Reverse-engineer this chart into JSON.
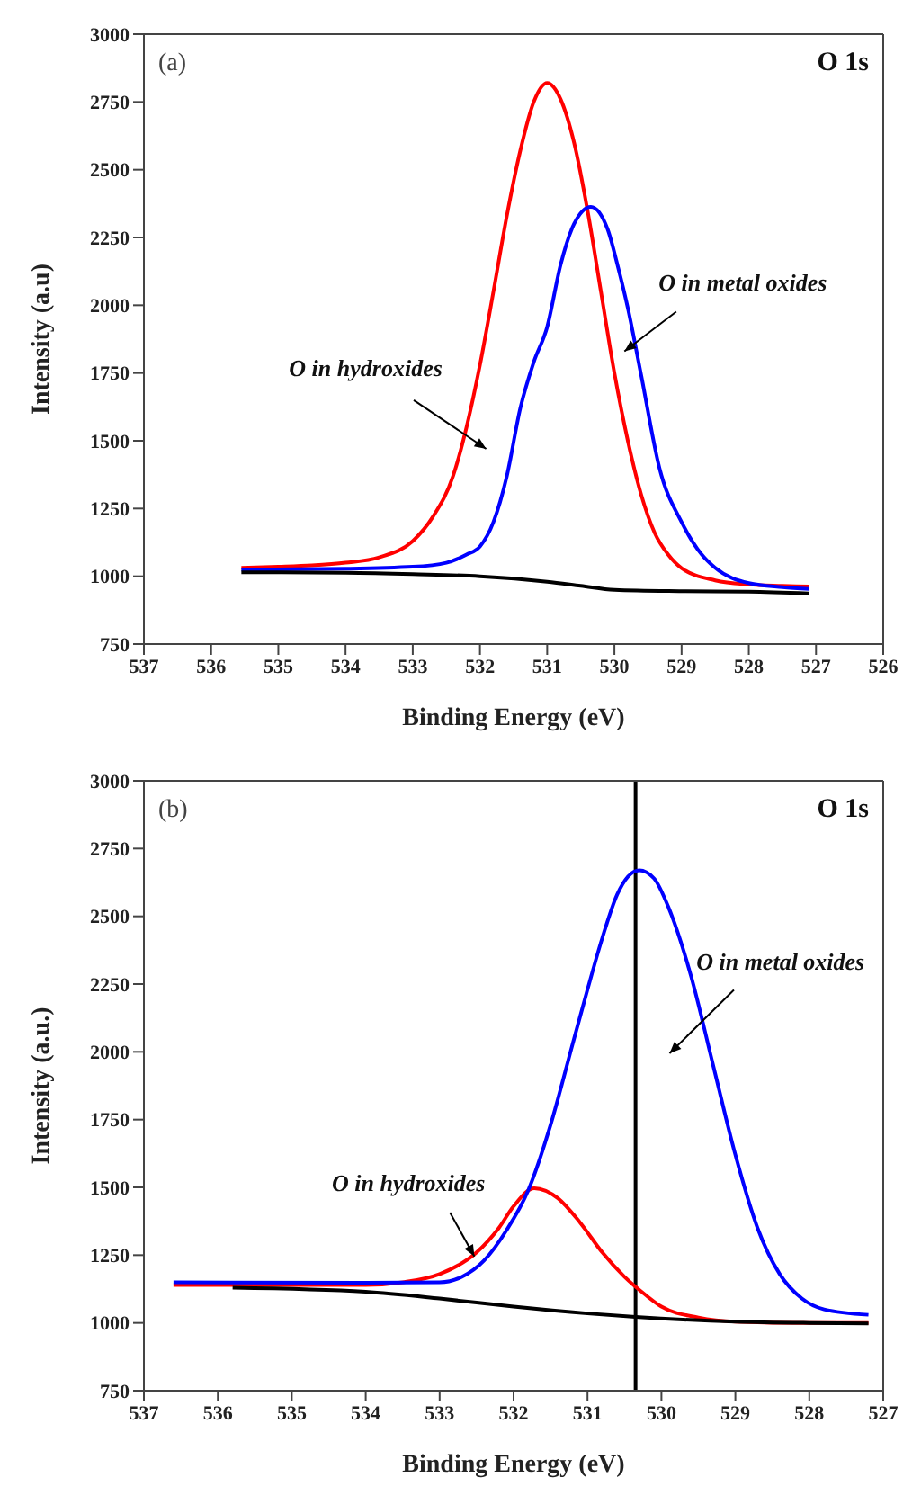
{
  "chart_data": [
    {
      "type": "line",
      "title": "(a)",
      "xlabel": "Binding Energy (eV)",
      "ylabel": "Intensity (a.u)",
      "xlim": [
        537,
        526
      ],
      "xticks": [
        537,
        536,
        535,
        534,
        533,
        532,
        531,
        530,
        529,
        528,
        527,
        526
      ],
      "ylim": [
        750,
        3000
      ],
      "yticks": [
        750,
        1000,
        1250,
        1500,
        1750,
        2000,
        2250,
        2500,
        2750,
        3000
      ],
      "marker": "none",
      "line_style": "solid",
      "annotations": [
        "O 1s",
        "O in hydroxides",
        "O in metal oxides"
      ],
      "series": [
        {
          "color": "#ff0000",
          "x": [
            535.55,
            535,
            534.5,
            534,
            533.5,
            533,
            532.7,
            532.4,
            532.2,
            532,
            531.8,
            531.6,
            531.4,
            531.2,
            531,
            530.8,
            530.6,
            530.4,
            530.2,
            530,
            529.8,
            529.6,
            529.4,
            529.2,
            529,
            528.5,
            528,
            527.5,
            527.1
          ],
          "values": [
            1031,
            1035,
            1040,
            1050,
            1070,
            1130,
            1220,
            1370,
            1550,
            1780,
            2050,
            2330,
            2570,
            2750,
            2820,
            2760,
            2600,
            2350,
            2050,
            1750,
            1500,
            1300,
            1160,
            1080,
            1030,
            985,
            970,
            965,
            962
          ]
        },
        {
          "color": "#0000ff",
          "x": [
            535.55,
            534,
            533,
            532.5,
            532.2,
            532,
            531.8,
            531.6,
            531.4,
            531.2,
            531,
            530.8,
            530.6,
            530.35,
            530.1,
            529.95,
            529.8,
            529.6,
            529.33,
            529,
            528.7,
            528.5,
            528,
            527.5,
            527.1
          ],
          "values": [
            1025,
            1028,
            1035,
            1050,
            1080,
            1110,
            1200,
            1370,
            1620,
            1790,
            1920,
            2150,
            2300,
            2363,
            2280,
            2145,
            1990,
            1740,
            1400,
            1200,
            1080,
            1031,
            975,
            960,
            953
          ]
        },
        {
          "color": "#000000",
          "x": [
            535.55,
            534,
            533,
            532,
            531,
            530.5,
            530,
            529,
            528,
            527.1
          ],
          "values": [
            1015,
            1013,
            1008,
            1000,
            980,
            965,
            950,
            945,
            943,
            937
          ]
        }
      ]
    },
    {
      "type": "line",
      "title": "(b)",
      "xlabel": "Binding Energy (eV)",
      "ylabel": "Intensity (a.u.)",
      "xlim": [
        537,
        527
      ],
      "xticks": [
        537,
        536,
        535,
        534,
        533,
        532,
        531,
        530,
        529,
        528,
        527
      ],
      "ylim": [
        750,
        3000
      ],
      "yticks": [
        750,
        1000,
        1250,
        1500,
        1750,
        2000,
        2250,
        2500,
        2750,
        3000
      ],
      "marker": "none",
      "line_style": "solid",
      "annotations": [
        "O 1s",
        "O in hydroxides",
        "O in metal oxides"
      ],
      "ref_lines": [
        {
          "axis": "x",
          "value": 530.35,
          "color": "#000000"
        }
      ],
      "series": [
        {
          "color": "#ff0000",
          "x": [
            536.6,
            534,
            533.5,
            533,
            532.5,
            532.2,
            532,
            531.72,
            531.4,
            531.1,
            530.8,
            530.5,
            530.2,
            530,
            529.5,
            529,
            528,
            527.2
          ],
          "values": [
            1140,
            1140,
            1150,
            1180,
            1260,
            1350,
            1430,
            1497,
            1460,
            1370,
            1260,
            1170,
            1100,
            1060,
            1020,
            1005,
            1000,
            1000
          ]
        },
        {
          "color": "#0000ff",
          "x": [
            536.6,
            534,
            533,
            532.7,
            532.4,
            532.1,
            531.8,
            531.5,
            531.2,
            531,
            530.8,
            530.6,
            530.3,
            530.1,
            529.9,
            529.6,
            529.3,
            529,
            528.7,
            528.4,
            528.1,
            527.8,
            527.2
          ],
          "values": [
            1150,
            1148,
            1150,
            1170,
            1230,
            1340,
            1490,
            1730,
            2030,
            2230,
            2420,
            2580,
            2670,
            2640,
            2530,
            2280,
            1950,
            1620,
            1350,
            1180,
            1090,
            1050,
            1030
          ]
        },
        {
          "color": "#000000",
          "x": [
            535.8,
            534,
            533,
            532,
            531,
            530.35,
            529,
            528,
            527.2
          ],
          "values": [
            1130,
            1115,
            1090,
            1060,
            1035,
            1022,
            1005,
            1000,
            998
          ]
        }
      ]
    }
  ]
}
